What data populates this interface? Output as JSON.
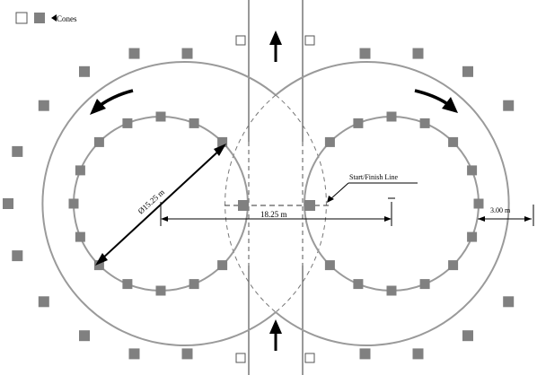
{
  "legend": {
    "label": "Cones",
    "open_marker": "open-square-marker",
    "filled_marker": "filled-square-marker",
    "pointer": "left-triangle-pointer"
  },
  "annotations": {
    "start_finish": "Start/Finish Line",
    "center_distance": "18.25 m",
    "diameter": "Ø15.25 m",
    "lane_width": "3.00 m"
  },
  "direction_icons": [
    "arrow-up-icon",
    "arrow-up-icon",
    "curved-arrow-ccw-icon",
    "curved-arrow-cw-icon"
  ],
  "colors": {
    "cone": "#808080",
    "track_line": "#9a9a9a",
    "ink": "#000000"
  }
}
